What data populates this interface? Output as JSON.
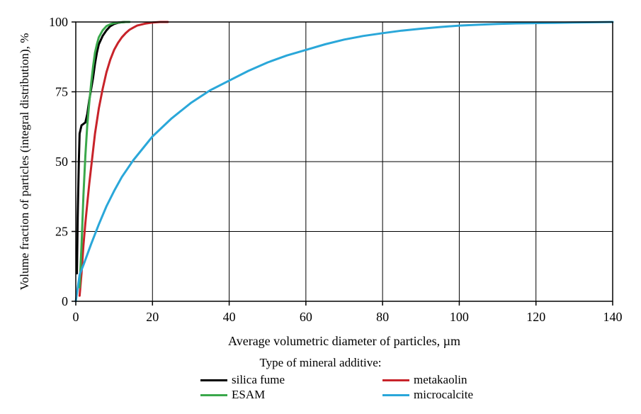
{
  "chart_data": {
    "type": "line",
    "title": "",
    "xlabel": "Average volumetric diameter of particles, µm",
    "ylabel": "Volume fraction of particles (integral distribution), %",
    "xlim": [
      0,
      140
    ],
    "ylim": [
      0,
      100
    ],
    "xticks": [
      0,
      20,
      40,
      60,
      80,
      100,
      120,
      140
    ],
    "yticks": [
      0,
      25,
      50,
      75,
      100
    ],
    "grid": true,
    "legend": {
      "title": "Type of mineral additive:",
      "placement": "bottom"
    },
    "series": [
      {
        "name": "silica fume",
        "color": "#000000",
        "x": [
          0.3,
          0.5,
          0.8,
          1.0,
          1.5,
          2.5,
          3.0,
          3.5,
          4.0,
          4.5,
          5.0,
          5.5,
          6.0,
          7.0,
          8.0,
          9.0,
          10.0,
          11.0,
          12.0,
          13.0
        ],
        "y": [
          10,
          30,
          50,
          60,
          63,
          64,
          67,
          72,
          76,
          80,
          85,
          89,
          92,
          95,
          97,
          98.5,
          99.3,
          99.7,
          99.9,
          100
        ]
      },
      {
        "name": "metakaolin",
        "color": "#c8232a",
        "x": [
          1.0,
          1.5,
          2.0,
          2.5,
          3.0,
          3.5,
          4.0,
          5.0,
          6.0,
          7.0,
          8.0,
          9.0,
          10.0,
          11.0,
          12.0,
          13.0,
          14.0,
          15.0,
          16.0,
          18.0,
          20.0,
          22.0,
          24.0
        ],
        "y": [
          2,
          10,
          20,
          28,
          35,
          42,
          48,
          60,
          69,
          76,
          82,
          86.5,
          90,
          92.5,
          94.5,
          96,
          97.2,
          98,
          98.7,
          99.4,
          99.8,
          100,
          100
        ]
      },
      {
        "name": "ESAM",
        "color": "#3aa84b",
        "x": [
          1.0,
          1.5,
          2.0,
          2.5,
          3.0,
          3.5,
          4.0,
          4.5,
          5.0,
          5.5,
          6.0,
          7.0,
          8.0,
          9.0,
          10.0,
          11.0,
          12.0,
          13.0,
          14.0
        ],
        "y": [
          5,
          20,
          38,
          52,
          63,
          71,
          78,
          84,
          89,
          92,
          94.5,
          97,
          98.5,
          99.2,
          99.6,
          99.8,
          99.9,
          100,
          100
        ]
      },
      {
        "name": "microcalcite",
        "color": "#2aa7d9",
        "x": [
          0,
          1,
          2,
          4,
          6,
          8,
          10,
          12,
          15,
          20,
          25,
          30,
          35,
          40,
          45,
          50,
          55,
          60,
          65,
          70,
          75,
          80,
          85,
          90,
          95,
          100,
          105,
          110,
          115,
          120,
          125,
          130,
          135,
          140
        ],
        "y": [
          0,
          9.5,
          13,
          20.5,
          27.5,
          34,
          39.5,
          44.5,
          50.5,
          59,
          65.5,
          71,
          75.5,
          79,
          82.5,
          85.5,
          88,
          90,
          92,
          93.7,
          95,
          96,
          96.9,
          97.6,
          98.2,
          98.7,
          99.0,
          99.3,
          99.5,
          99.6,
          99.7,
          99.8,
          99.9,
          100
        ]
      }
    ]
  }
}
